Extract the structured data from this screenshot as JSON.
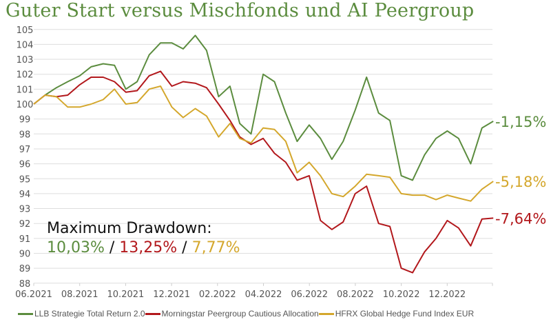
{
  "chart_data": {
    "type": "line",
    "title": "Guter Start versus Mischfonds und AI Peergroup",
    "ylim": [
      88,
      105
    ],
    "yticks": [
      "105",
      "104",
      "103",
      "102",
      "101",
      "100",
      "99",
      "98",
      "97",
      "96",
      "95",
      "94",
      "93",
      "92",
      "91",
      "90",
      "89",
      "88"
    ],
    "xticks": [
      "06.2021",
      "08.2021",
      "10.2021",
      "12.2021",
      "02.2022",
      "04.2022",
      "06.2022",
      "08.2022",
      "10.2022",
      "12.2022"
    ],
    "grid": true,
    "legend_position": "bottom",
    "x": [
      "2021-06-01",
      "2021-06-16",
      "2021-07-01",
      "2021-07-16",
      "2021-08-01",
      "2021-08-16",
      "2021-09-01",
      "2021-09-16",
      "2021-10-01",
      "2021-10-16",
      "2021-11-01",
      "2021-11-16",
      "2021-12-01",
      "2021-12-16",
      "2022-01-01",
      "2022-01-16",
      "2022-02-01",
      "2022-02-16",
      "2022-03-01",
      "2022-03-16",
      "2022-04-01",
      "2022-04-16",
      "2022-05-01",
      "2022-05-16",
      "2022-06-01",
      "2022-06-16",
      "2022-07-01",
      "2022-07-16",
      "2022-08-01",
      "2022-08-16",
      "2022-09-01",
      "2022-09-16",
      "2022-10-01",
      "2022-10-16",
      "2022-11-01",
      "2022-11-16",
      "2022-12-01",
      "2022-12-16",
      "2023-01-01",
      "2023-01-16",
      "2023-01-31"
    ],
    "series": [
      {
        "name": "LLB Strategie Total Return 2.0",
        "color": "#5b8c3e",
        "end_label": "-1,15%",
        "values": [
          100.0,
          100.6,
          101.1,
          101.5,
          101.9,
          102.5,
          102.7,
          102.6,
          101.0,
          101.5,
          103.3,
          104.1,
          104.1,
          103.7,
          104.6,
          103.6,
          100.5,
          101.2,
          98.7,
          98.0,
          102.0,
          101.5,
          99.4,
          97.5,
          98.6,
          97.7,
          96.3,
          97.5,
          99.6,
          101.8,
          99.4,
          98.9,
          95.2,
          94.9,
          96.6,
          97.7,
          98.2,
          97.7,
          96.0,
          98.4,
          98.85
        ]
      },
      {
        "name": "Morningstar Peergroup Cautious Allocation",
        "color": "#b2171b",
        "end_label": "-7,64%",
        "values": [
          100.0,
          100.6,
          100.5,
          100.6,
          101.3,
          101.8,
          101.8,
          101.5,
          100.8,
          100.9,
          101.9,
          102.2,
          101.2,
          101.5,
          101.4,
          101.1,
          100.0,
          98.9,
          97.8,
          97.3,
          97.7,
          96.7,
          96.1,
          94.9,
          95.2,
          92.2,
          91.6,
          92.1,
          94.0,
          94.5,
          92.0,
          91.8,
          89.0,
          88.7,
          90.1,
          91.0,
          92.2,
          91.7,
          90.5,
          92.3,
          92.36
        ]
      },
      {
        "name": "HFRX Global Hedge Fund Index EUR",
        "color": "#d4a72c",
        "end_label": "-5,18%",
        "values": [
          100.0,
          100.6,
          100.5,
          99.8,
          99.8,
          100.0,
          100.3,
          101.0,
          100.0,
          100.1,
          101.0,
          101.2,
          99.8,
          99.1,
          99.7,
          99.2,
          97.8,
          98.7,
          97.7,
          97.4,
          98.4,
          98.3,
          97.5,
          95.4,
          96.1,
          95.2,
          94.0,
          93.8,
          94.5,
          95.3,
          95.2,
          95.1,
          94.0,
          93.9,
          93.9,
          93.6,
          93.9,
          93.7,
          93.5,
          94.3,
          94.82
        ]
      }
    ],
    "annotation": {
      "heading": "Maximum Drawdown:",
      "values": [
        "10,03%",
        "13,25%",
        "7,77%"
      ],
      "separator": " / "
    }
  }
}
